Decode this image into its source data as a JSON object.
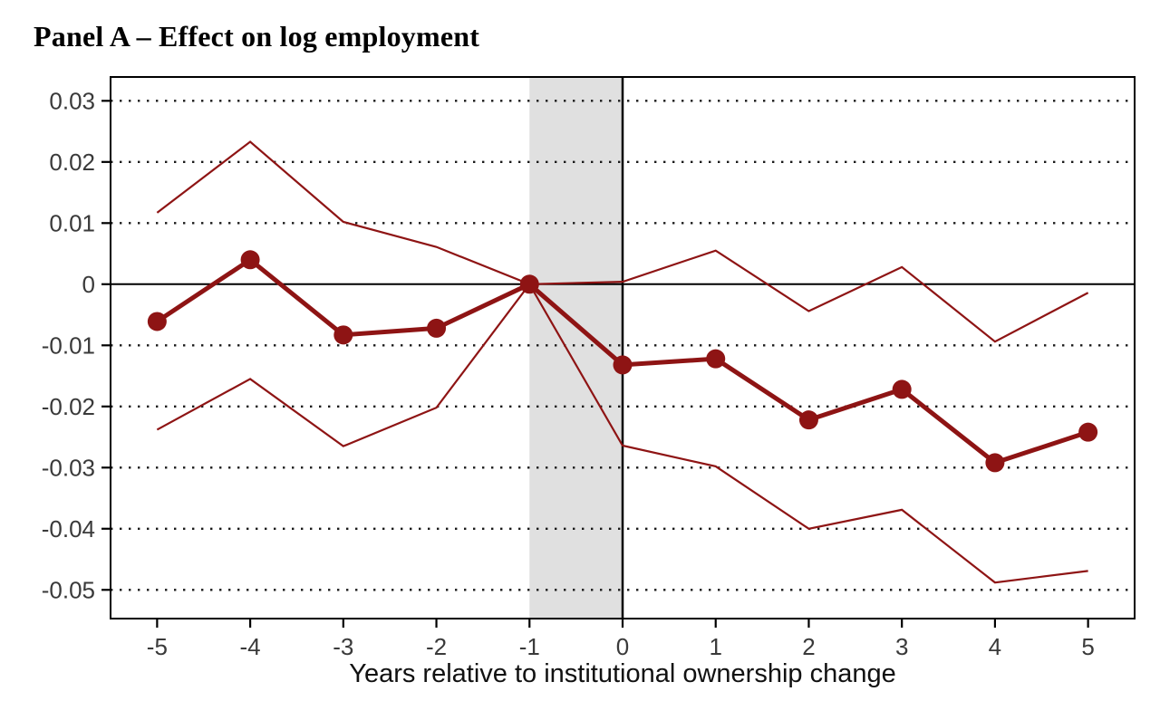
{
  "title": "Panel A – Effect on log employment",
  "colors": {
    "series": "#8E1414",
    "shade": "#E0E0E0",
    "grid": "#1a1a1a",
    "axis": "#000000",
    "tick_label": "#3a3a3a",
    "axis_label": "#111111",
    "background": "#ffffff"
  },
  "chart_data": {
    "type": "line",
    "title": "Panel A – Effect on log employment",
    "xlabel": "Years relative to institutional ownership change",
    "ylabel": "",
    "x": [
      -5,
      -4,
      -3,
      -2,
      -1,
      0,
      1,
      2,
      3,
      4,
      5
    ],
    "series": [
      {
        "name": "estimate",
        "role": "point-estimate",
        "values": [
          -0.0061,
          0.004,
          -0.0083,
          -0.0072,
          0.0,
          -0.0132,
          -0.0122,
          -0.0222,
          -0.0172,
          -0.0292,
          -0.0242
        ]
      },
      {
        "name": "ci_upper",
        "role": "confidence-upper",
        "values": [
          0.0117,
          0.0233,
          0.0102,
          0.0061,
          0.0,
          0.0004,
          0.0055,
          -0.0044,
          0.0028,
          -0.0094,
          -0.0014
        ]
      },
      {
        "name": "ci_lower",
        "role": "confidence-lower",
        "values": [
          -0.0238,
          -0.0155,
          -0.0265,
          -0.0202,
          0.0,
          -0.0264,
          -0.0298,
          -0.04,
          -0.0369,
          -0.0488,
          -0.0469
        ]
      }
    ],
    "x_ticks": [
      -5,
      -4,
      -3,
      -2,
      -1,
      0,
      1,
      2,
      3,
      4,
      5
    ],
    "x_tick_labels": [
      "-5",
      "-4",
      "-3",
      "-2",
      "-1",
      "0",
      "1",
      "2",
      "3",
      "4",
      "5"
    ],
    "y_ticks": [
      0.03,
      0.02,
      0.01,
      0,
      -0.01,
      -0.02,
      -0.03,
      -0.04,
      -0.05
    ],
    "y_tick_labels": [
      "0.03",
      "0.02",
      "0.01",
      "0",
      "-0.01",
      "-0.02",
      "-0.03",
      "-0.04",
      "-0.05"
    ],
    "xlim": [
      -5.5,
      5.5
    ],
    "ylim": [
      -0.0547,
      0.0339
    ],
    "grid": "dotted-horizontal",
    "legend": "none",
    "zero_line": true,
    "event_line_at": 0,
    "shaded_region": {
      "from": -1,
      "to": 0
    }
  }
}
